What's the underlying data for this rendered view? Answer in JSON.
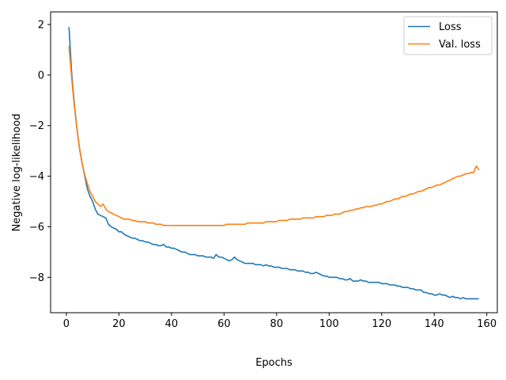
{
  "chart_data": {
    "type": "line",
    "title": "",
    "xlabel": "Epochs",
    "ylabel": "Negative log-likelihood",
    "xlim": [
      -6,
      164
    ],
    "ylim": [
      -9.4,
      2.5
    ],
    "x_ticks": [
      0,
      20,
      40,
      60,
      80,
      100,
      120,
      140,
      160
    ],
    "y_ticks": [
      -8,
      -6,
      -4,
      -2,
      0,
      2
    ],
    "grid": false,
    "legend_position": "top-right",
    "series": [
      {
        "name": "Loss",
        "color": "#1f77b4",
        "x": [
          1,
          2,
          3,
          4,
          5,
          6,
          7,
          8,
          9,
          10,
          11,
          12,
          13,
          14,
          15,
          16,
          17,
          18,
          19,
          20,
          21,
          22,
          23,
          24,
          25,
          26,
          27,
          28,
          29,
          30,
          31,
          32,
          33,
          34,
          35,
          36,
          37,
          38,
          39,
          40,
          41,
          42,
          43,
          44,
          45,
          46,
          47,
          48,
          49,
          50,
          51,
          52,
          53,
          54,
          55,
          56,
          57,
          58,
          59,
          60,
          61,
          62,
          63,
          64,
          65,
          66,
          67,
          68,
          69,
          70,
          71,
          72,
          73,
          74,
          75,
          76,
          77,
          78,
          79,
          80,
          81,
          82,
          83,
          84,
          85,
          86,
          87,
          88,
          89,
          90,
          91,
          92,
          93,
          94,
          95,
          96,
          97,
          98,
          99,
          100,
          101,
          102,
          103,
          104,
          105,
          106,
          107,
          108,
          109,
          110,
          111,
          112,
          113,
          114,
          115,
          116,
          117,
          118,
          119,
          120,
          121,
          122,
          123,
          124,
          125,
          126,
          127,
          128,
          129,
          130,
          131,
          132,
          133,
          134,
          135,
          136,
          137,
          138,
          139,
          140,
          141,
          142,
          143,
          144,
          145,
          146,
          147,
          148,
          149,
          150,
          151,
          152,
          153,
          154,
          155,
          156,
          157
        ],
        "y": [
          1.9,
          0.1,
          -1.1,
          -2.1,
          -2.9,
          -3.5,
          -4.0,
          -4.5,
          -4.8,
          -5.0,
          -5.3,
          -5.5,
          -5.55,
          -5.6,
          -5.65,
          -5.9,
          -6.0,
          -6.05,
          -6.1,
          -6.2,
          -6.2,
          -6.3,
          -6.35,
          -6.4,
          -6.45,
          -6.45,
          -6.5,
          -6.55,
          -6.55,
          -6.6,
          -6.6,
          -6.65,
          -6.7,
          -6.7,
          -6.75,
          -6.75,
          -6.7,
          -6.8,
          -6.8,
          -6.85,
          -6.85,
          -6.9,
          -6.95,
          -7.0,
          -7.0,
          -7.05,
          -7.1,
          -7.1,
          -7.1,
          -7.15,
          -7.15,
          -7.15,
          -7.2,
          -7.2,
          -7.2,
          -7.25,
          -7.1,
          -7.2,
          -7.2,
          -7.25,
          -7.3,
          -7.35,
          -7.3,
          -7.2,
          -7.3,
          -7.35,
          -7.4,
          -7.45,
          -7.45,
          -7.45,
          -7.45,
          -7.5,
          -7.5,
          -7.5,
          -7.55,
          -7.5,
          -7.55,
          -7.55,
          -7.6,
          -7.6,
          -7.6,
          -7.65,
          -7.65,
          -7.65,
          -7.7,
          -7.7,
          -7.7,
          -7.75,
          -7.75,
          -7.75,
          -7.8,
          -7.8,
          -7.85,
          -7.85,
          -7.8,
          -7.85,
          -7.9,
          -7.95,
          -7.95,
          -8.0,
          -8.0,
          -8.0,
          -8.0,
          -8.05,
          -8.05,
          -8.1,
          -8.1,
          -8.05,
          -8.15,
          -8.15,
          -8.15,
          -8.1,
          -8.15,
          -8.15,
          -8.2,
          -8.2,
          -8.2,
          -8.2,
          -8.2,
          -8.25,
          -8.25,
          -8.25,
          -8.3,
          -8.3,
          -8.3,
          -8.35,
          -8.35,
          -8.4,
          -8.4,
          -8.4,
          -8.45,
          -8.45,
          -8.5,
          -8.5,
          -8.5,
          -8.6,
          -8.6,
          -8.65,
          -8.65,
          -8.7,
          -8.7,
          -8.65,
          -8.7,
          -8.7,
          -8.75,
          -8.8,
          -8.75,
          -8.8,
          -8.8,
          -8.85,
          -8.8,
          -8.85,
          -8.85,
          -8.85,
          -8.85,
          -8.85,
          -8.85
        ]
      },
      {
        "name": "Val. loss",
        "color": "#ff7f0e",
        "x": [
          1,
          2,
          3,
          4,
          5,
          6,
          7,
          8,
          9,
          10,
          11,
          12,
          13,
          14,
          15,
          16,
          17,
          18,
          19,
          20,
          21,
          22,
          23,
          24,
          25,
          26,
          27,
          28,
          29,
          30,
          31,
          32,
          33,
          34,
          35,
          36,
          37,
          38,
          39,
          40,
          41,
          42,
          43,
          44,
          45,
          46,
          47,
          48,
          49,
          50,
          51,
          52,
          53,
          54,
          55,
          56,
          57,
          58,
          59,
          60,
          61,
          62,
          63,
          64,
          65,
          66,
          67,
          68,
          69,
          70,
          71,
          72,
          73,
          74,
          75,
          76,
          77,
          78,
          79,
          80,
          81,
          82,
          83,
          84,
          85,
          86,
          87,
          88,
          89,
          90,
          91,
          92,
          93,
          94,
          95,
          96,
          97,
          98,
          99,
          100,
          101,
          102,
          103,
          104,
          105,
          106,
          107,
          108,
          109,
          110,
          111,
          112,
          113,
          114,
          115,
          116,
          117,
          118,
          119,
          120,
          121,
          122,
          123,
          124,
          125,
          126,
          127,
          128,
          129,
          130,
          131,
          132,
          133,
          134,
          135,
          136,
          137,
          138,
          139,
          140,
          141,
          142,
          143,
          144,
          145,
          146,
          147,
          148,
          149,
          150,
          151,
          152,
          153,
          154,
          155,
          156,
          157
        ],
        "y": [
          1.15,
          -0.1,
          -1.2,
          -2.1,
          -2.9,
          -3.5,
          -3.95,
          -4.3,
          -4.6,
          -4.8,
          -5.0,
          -5.1,
          -5.2,
          -5.1,
          -5.3,
          -5.4,
          -5.45,
          -5.5,
          -5.55,
          -5.6,
          -5.65,
          -5.7,
          -5.7,
          -5.7,
          -5.75,
          -5.75,
          -5.8,
          -5.8,
          -5.8,
          -5.8,
          -5.85,
          -5.85,
          -5.85,
          -5.9,
          -5.9,
          -5.9,
          -5.95,
          -5.95,
          -5.95,
          -5.95,
          -5.95,
          -5.95,
          -5.95,
          -5.95,
          -5.95,
          -5.95,
          -5.95,
          -5.95,
          -5.95,
          -5.95,
          -5.95,
          -5.95,
          -5.95,
          -5.95,
          -5.95,
          -5.95,
          -5.95,
          -5.95,
          -5.95,
          -5.95,
          -5.9,
          -5.9,
          -5.9,
          -5.9,
          -5.9,
          -5.9,
          -5.9,
          -5.9,
          -5.85,
          -5.85,
          -5.85,
          -5.85,
          -5.85,
          -5.85,
          -5.85,
          -5.8,
          -5.8,
          -5.8,
          -5.8,
          -5.8,
          -5.75,
          -5.75,
          -5.75,
          -5.75,
          -5.7,
          -5.7,
          -5.7,
          -5.7,
          -5.7,
          -5.65,
          -5.65,
          -5.65,
          -5.65,
          -5.65,
          -5.6,
          -5.6,
          -5.6,
          -5.6,
          -5.55,
          -5.55,
          -5.55,
          -5.5,
          -5.5,
          -5.5,
          -5.45,
          -5.4,
          -5.4,
          -5.35,
          -5.35,
          -5.3,
          -5.3,
          -5.25,
          -5.25,
          -5.2,
          -5.2,
          -5.2,
          -5.15,
          -5.15,
          -5.1,
          -5.1,
          -5.05,
          -5.0,
          -5.0,
          -4.95,
          -4.9,
          -4.9,
          -4.85,
          -4.8,
          -4.8,
          -4.75,
          -4.7,
          -4.7,
          -4.65,
          -4.6,
          -4.6,
          -4.55,
          -4.5,
          -4.45,
          -4.45,
          -4.4,
          -4.35,
          -4.35,
          -4.3,
          -4.25,
          -4.2,
          -4.15,
          -4.1,
          -4.05,
          -4.0,
          -4.0,
          -3.95,
          -3.9,
          -3.9,
          -3.85,
          -3.85,
          -3.6,
          -3.75
        ]
      }
    ]
  }
}
